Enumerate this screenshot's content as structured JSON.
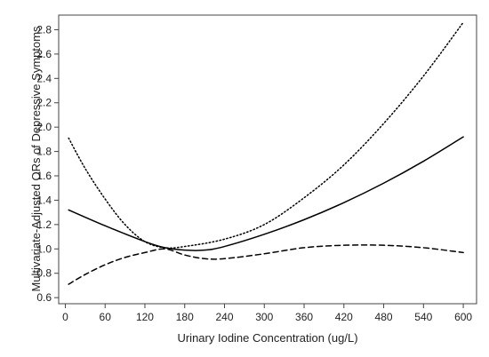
{
  "chart_data": {
    "type": "line",
    "title": "",
    "xlabel": "Urinary Iodine Concentration (ug/L)",
    "ylabel": "Multivariate-Adjusted ORs of Depressive Symptoms",
    "xlim": [
      -10,
      620
    ],
    "ylim": [
      0.55,
      2.92
    ],
    "x_ticks": [
      0,
      60,
      120,
      180,
      240,
      300,
      360,
      420,
      480,
      540,
      600
    ],
    "y_ticks": [
      0.6,
      0.8,
      1.0,
      1.2,
      1.4,
      1.6,
      1.8,
      2.0,
      2.2,
      2.4,
      2.6,
      2.8
    ],
    "y_tick_labels": [
      "0.6",
      "0.8",
      "1.0",
      "1.2",
      "1.4",
      "1.6",
      "1.8",
      "2.0",
      "2.2",
      "2.4",
      "2.6",
      "2.8"
    ],
    "grid": false,
    "legend": "none",
    "series": [
      {
        "style": "solid",
        "color": "#000000",
        "x": [
          5,
          60,
          120,
          150,
          180,
          210,
          240,
          300,
          360,
          420,
          480,
          540,
          600
        ],
        "y": [
          1.32,
          1.19,
          1.06,
          1.01,
          0.99,
          0.99,
          1.02,
          1.12,
          1.24,
          1.38,
          1.54,
          1.72,
          1.92
        ]
      },
      {
        "style": "dotted",
        "color": "#000000",
        "x": [
          5,
          30,
          60,
          90,
          120,
          150,
          180,
          240,
          300,
          360,
          420,
          480,
          540,
          600
        ],
        "y": [
          1.91,
          1.66,
          1.41,
          1.2,
          1.06,
          1.01,
          1.02,
          1.08,
          1.2,
          1.42,
          1.69,
          2.03,
          2.42,
          2.86
        ]
      },
      {
        "style": "dashed",
        "color": "#000000",
        "x": [
          5,
          30,
          60,
          90,
          120,
          150,
          180,
          210,
          240,
          300,
          360,
          420,
          480,
          540,
          600
        ],
        "y": [
          0.71,
          0.79,
          0.87,
          0.93,
          0.97,
          1.0,
          0.95,
          0.92,
          0.92,
          0.96,
          1.01,
          1.03,
          1.03,
          1.01,
          0.97
        ]
      }
    ]
  }
}
